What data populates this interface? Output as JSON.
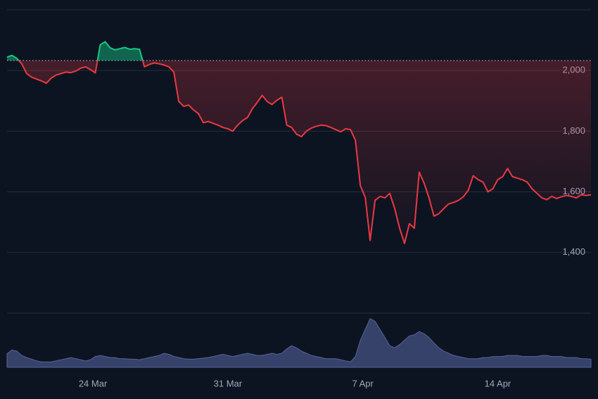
{
  "chart_data": {
    "type": "line",
    "xlim": [
      0,
      119
    ],
    "xticks": [
      {
        "value": 17.5,
        "label": "24 Mar"
      },
      {
        "value": 45,
        "label": "31 Mar"
      },
      {
        "value": 72.5,
        "label": "7 Apr"
      },
      {
        "value": 100,
        "label": "14 Apr"
      }
    ],
    "ylim": [
      1200,
      2200
    ],
    "yticks": [
      {
        "value": 1400,
        "label": "1,400"
      },
      {
        "value": 1600,
        "label": "1,600"
      },
      {
        "value": 1800,
        "label": "1,800"
      },
      {
        "value": 2000,
        "label": "2,000"
      }
    ],
    "grid": true,
    "baseline": 2033,
    "up_color": "#16c784",
    "down_color": "#ea3943",
    "values": [
      2044,
      2050,
      2040,
      2022,
      1990,
      1978,
      1972,
      1966,
      1958,
      1975,
      1985,
      1990,
      1995,
      1993,
      1998,
      2008,
      2012,
      2003,
      1992,
      2085,
      2095,
      2075,
      2068,
      2072,
      2076,
      2070,
      2072,
      2070,
      2012,
      2020,
      2025,
      2022,
      2018,
      2012,
      1995,
      1898,
      1882,
      1886,
      1870,
      1858,
      1828,
      1832,
      1826,
      1820,
      1812,
      1808,
      1800,
      1820,
      1835,
      1845,
      1874,
      1895,
      1918,
      1898,
      1888,
      1902,
      1912,
      1820,
      1812,
      1790,
      1782,
      1800,
      1810,
      1816,
      1820,
      1818,
      1812,
      1805,
      1798,
      1808,
      1805,
      1770,
      1620,
      1582,
      1440,
      1572,
      1585,
      1580,
      1595,
      1545,
      1480,
      1430,
      1495,
      1480,
      1665,
      1628,
      1580,
      1520,
      1528,
      1545,
      1560,
      1565,
      1572,
      1584,
      1605,
      1653,
      1640,
      1632,
      1600,
      1610,
      1640,
      1650,
      1677,
      1650,
      1645,
      1640,
      1632,
      1610,
      1595,
      1580,
      1574,
      1585,
      1578,
      1584,
      1588,
      1585,
      1580,
      1590,
      1588,
      1590
    ],
    "volume": {
      "ylim": [
        0,
        100
      ],
      "color": "#36426a",
      "values": [
        25,
        32,
        30,
        22,
        18,
        15,
        12,
        10,
        10,
        10,
        12,
        14,
        16,
        18,
        16,
        14,
        12,
        14,
        20,
        22,
        20,
        18,
        18,
        16,
        16,
        15,
        15,
        14,
        16,
        18,
        20,
        22,
        26,
        24,
        20,
        18,
        16,
        15,
        15,
        16,
        17,
        18,
        20,
        22,
        24,
        22,
        20,
        22,
        24,
        26,
        24,
        22,
        22,
        24,
        26,
        24,
        26,
        34,
        40,
        36,
        30,
        26,
        22,
        20,
        18,
        16,
        16,
        16,
        14,
        12,
        10,
        20,
        50,
        70,
        90,
        85,
        70,
        55,
        40,
        36,
        42,
        50,
        58,
        60,
        66,
        62,
        55,
        45,
        36,
        30,
        26,
        22,
        20,
        18,
        16,
        16,
        16,
        18,
        18,
        20,
        20,
        20,
        22,
        22,
        22,
        20,
        20,
        20,
        20,
        22,
        22,
        20,
        20,
        20,
        18,
        18,
        18,
        16,
        16,
        15
      ]
    }
  }
}
